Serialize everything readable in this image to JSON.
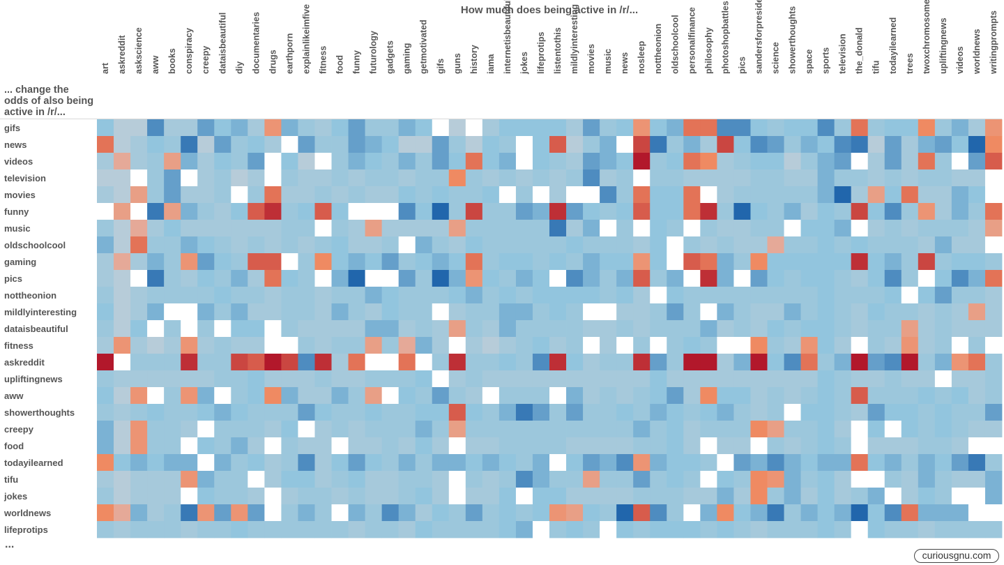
{
  "chart_data": {
    "type": "heatmap",
    "title": "How much does being active in /r/...",
    "ylabel": "... change the odds of also being active in /r/...",
    "x": [
      "art",
      "askreddit",
      "askscience",
      "aww",
      "books",
      "conspiracy",
      "creepy",
      "dataisbeautiful",
      "diy",
      "documentaries",
      "drugs",
      "earthporn",
      "explainlikeimfive",
      "fitness",
      "food",
      "funny",
      "futurology",
      "gadgets",
      "gaming",
      "getmotivated",
      "gifs",
      "guns",
      "history",
      "iama",
      "internetisbeautiful",
      "jokes",
      "lifeprotips",
      "listentothis",
      "mildlyinteresting",
      "movies",
      "music",
      "news",
      "nosleep",
      "nottheonion",
      "oldschoolcool",
      "personalfinance",
      "philosophy",
      "photoshopbattles",
      "pics",
      "sandersforpresident",
      "science",
      "showerthoughts",
      "space",
      "sports",
      "television",
      "the_donald",
      "tifu",
      "todayilearned",
      "trees",
      "twoxchromosomes",
      "upliftingnews",
      "videos",
      "worldnews",
      "writingprompts"
    ],
    "y": [
      "gifs",
      "news",
      "videos",
      "television",
      "movies",
      "funny",
      "music",
      "oldschoolcool",
      "gaming",
      "pics",
      "nottheonion",
      "mildlyinteresting",
      "dataisbeautiful",
      "fitness",
      "askreddit",
      "upliftingnews",
      "aww",
      "showerthoughts",
      "creepy",
      "food",
      "todayilearned",
      "tifu",
      "jokes",
      "worldnews",
      "lifeprotips"
    ],
    "more_rows": "...",
    "color_scale": {
      "negative": "#b2182b",
      "neutral": "#ffffff",
      "positive": "#2166ac"
    },
    "grid": false,
    "legend": "none",
    "values": [
      [
        0.5,
        0.2,
        0.2,
        0.8,
        0.3,
        0.3,
        0.7,
        0.5,
        0.6,
        0.3,
        -0.4,
        0.6,
        0.4,
        0.3,
        0.5,
        0.7,
        0.4,
        0.4,
        0.6,
        0.5,
        0,
        0.2,
        0,
        0.3,
        0.5,
        0.5,
        0.5,
        0.5,
        0.3,
        0.7,
        0.4,
        0.5,
        -0.4,
        0.5,
        0.6,
        -0.6,
        -0.6,
        0.8,
        0.8,
        0.5,
        0.4,
        0.5,
        0.5,
        0.8,
        0.4,
        -0.6,
        0.4,
        0.5,
        0.5,
        -0.5,
        0.4,
        0.6,
        0.3,
        -0.4
      ],
      [
        -0.6,
        0.2,
        0.3,
        0.5,
        0.4,
        0.9,
        0.2,
        0.7,
        0.4,
        0.5,
        0.3,
        0,
        0.7,
        0.4,
        0.4,
        0.7,
        0.6,
        0.5,
        0.2,
        0.2,
        0.7,
        0.4,
        0.2,
        0.5,
        0.4,
        0,
        0.5,
        -0.7,
        0.2,
        0.4,
        0.6,
        0,
        -0.8,
        0.9,
        0.4,
        0.6,
        0.3,
        -0.8,
        0.5,
        0.8,
        0.7,
        0.4,
        0.6,
        0.5,
        0.8,
        0.9,
        0.2,
        0.7,
        0.3,
        0.6,
        0.7,
        0.5,
        1,
        -0.5
      ],
      [
        0.3,
        -0.2,
        0.3,
        0.4,
        -0.3,
        0.6,
        0.3,
        0.5,
        0.4,
        0.7,
        0,
        0.5,
        0.2,
        0,
        0.4,
        0.6,
        0.5,
        0.4,
        0.6,
        0.4,
        0.7,
        0.5,
        -0.6,
        0.5,
        0.6,
        0,
        0.5,
        0.4,
        0.3,
        0.7,
        0.6,
        0.5,
        -1,
        0.4,
        0.5,
        -0.6,
        -0.5,
        0.3,
        0.4,
        0.5,
        0.5,
        0.2,
        0.4,
        0.6,
        0.7,
        0,
        0.3,
        0.7,
        0.3,
        -0.6,
        0.4,
        0,
        0.7,
        -0.7
      ],
      [
        0.2,
        0.2,
        0,
        0.4,
        0.7,
        0,
        0.3,
        0.4,
        0.2,
        0.3,
        0,
        0.4,
        0.3,
        0.3,
        0.4,
        0.3,
        0.4,
        0.4,
        0.3,
        0.4,
        0.4,
        -0.5,
        0.4,
        0.3,
        0.4,
        0.3,
        0.4,
        0.3,
        0.4,
        0.8,
        0.3,
        0.4,
        0,
        0.4,
        0.4,
        0.3,
        0.3,
        0.3,
        0.3,
        0.4,
        0.4,
        0.3,
        0.3,
        0.6,
        0.4,
        0.4,
        0.3,
        0.4,
        0.3,
        0.4,
        0.4,
        0.3,
        0.3,
        0
      ],
      [
        0.3,
        0.2,
        -0.3,
        0.4,
        0.7,
        0.3,
        0.3,
        0.4,
        0,
        0.4,
        -0.6,
        0.3,
        0.3,
        0.4,
        0.3,
        0.4,
        0.3,
        0.3,
        0.5,
        0.4,
        0.5,
        0.4,
        0.4,
        0.5,
        0,
        0.4,
        0,
        0.3,
        0,
        0,
        0.8,
        0.4,
        -0.6,
        0.5,
        0.5,
        -0.6,
        0,
        0.3,
        0.4,
        0.4,
        0.4,
        0.4,
        0.4,
        0.6,
        1,
        0.3,
        -0.3,
        0.5,
        -0.6,
        0.3,
        0.3,
        0.6,
        0.5,
        0
      ],
      [
        0,
        -0.3,
        0,
        0.9,
        -0.3,
        0.6,
        0.4,
        0.3,
        0.5,
        -0.7,
        -0.9,
        0.4,
        0.5,
        -0.7,
        0.5,
        0,
        0,
        0,
        0.8,
        0.5,
        1,
        0.4,
        -0.8,
        0.4,
        0.4,
        0.7,
        0.6,
        -0.9,
        0.7,
        0.5,
        0.4,
        0.5,
        -0.7,
        0.5,
        0.5,
        -0.6,
        -0.9,
        0.4,
        1,
        0.5,
        0.4,
        0.6,
        0.3,
        0.5,
        0.4,
        -0.8,
        0.5,
        0.8,
        0.4,
        -0.4,
        0.3,
        0.6,
        0.4,
        -0.6
      ],
      [
        0.4,
        0.2,
        -0.2,
        0.3,
        0.5,
        0.3,
        0.3,
        0.3,
        0.3,
        0.3,
        0.3,
        0.4,
        0.4,
        0,
        0.4,
        0.3,
        -0.3,
        0.3,
        0.3,
        0.3,
        0.3,
        -0.3,
        0.4,
        0.4,
        0.4,
        0.4,
        0.4,
        0.9,
        0.3,
        0.6,
        0,
        0.4,
        0,
        0.5,
        0.4,
        0,
        0.4,
        0.3,
        0.3,
        0.4,
        0.4,
        0,
        0.5,
        0.5,
        0.6,
        0,
        0.3,
        0.4,
        0.3,
        0.4,
        0.4,
        0.4,
        0.3,
        -0.3
      ],
      [
        0.6,
        0.2,
        -0.6,
        0.4,
        0.4,
        0.6,
        0.5,
        0.4,
        0.3,
        0.4,
        0.3,
        0.4,
        0.3,
        0.4,
        0.5,
        0.3,
        0.3,
        0.4,
        0,
        0.6,
        0.4,
        0.3,
        0.5,
        0.4,
        0.4,
        0.4,
        0.4,
        0.4,
        0.5,
        0.4,
        0.4,
        0.4,
        0.3,
        0.5,
        0,
        0.4,
        0.3,
        0.4,
        0.3,
        0.3,
        -0.2,
        0.4,
        0.4,
        0.5,
        0.4,
        0.5,
        0.4,
        0.4,
        0.4,
        0.3,
        0.6,
        0.3,
        0.3,
        0
      ],
      [
        0.3,
        -0.2,
        0.3,
        0.6,
        0.4,
        -0.4,
        0.7,
        0.5,
        0.4,
        -0.7,
        -0.7,
        0,
        0.4,
        -0.5,
        0.5,
        0.6,
        0.5,
        0.7,
        0.4,
        0.5,
        0.6,
        0.5,
        -0.6,
        0.4,
        0.5,
        0.5,
        0.4,
        0.5,
        0.4,
        0.6,
        0.5,
        0.5,
        -0.4,
        0.5,
        0,
        -0.7,
        -0.6,
        0.6,
        0.4,
        -0.5,
        0.5,
        0.5,
        0.5,
        0.5,
        0.5,
        -0.9,
        0.5,
        0.6,
        0.4,
        -0.8,
        0.4,
        0.5,
        0.5,
        0.4
      ],
      [
        0.3,
        0.2,
        0,
        0.9,
        0.4,
        0.3,
        0.5,
        0.4,
        0.6,
        0.3,
        -0.6,
        0.5,
        0.4,
        0,
        0.6,
        1,
        0,
        0,
        0.7,
        0.4,
        1,
        0.6,
        -0.4,
        0.5,
        0.4,
        0.6,
        0.5,
        0,
        0.8,
        0.6,
        0.4,
        0.6,
        -0.7,
        0.4,
        0.6,
        0,
        -0.9,
        0.6,
        0,
        0.7,
        0.5,
        0.4,
        0.5,
        0.5,
        0.4,
        0.3,
        0.5,
        0.8,
        0.4,
        0,
        0.5,
        0.8,
        0.6,
        -0.6
      ],
      [
        0.4,
        0.2,
        0.3,
        0.4,
        0.4,
        0.4,
        0.4,
        0.5,
        0.4,
        0.4,
        0.3,
        0.4,
        0.4,
        0.3,
        0.4,
        0.4,
        0.6,
        0.5,
        0.4,
        0.4,
        0.4,
        0.5,
        0.6,
        0.4,
        0.5,
        0.4,
        0.5,
        0.5,
        0.5,
        0.5,
        0.4,
        0.5,
        0.3,
        0,
        0.5,
        0.4,
        0.4,
        0.4,
        0.4,
        0.4,
        0.4,
        0.4,
        0.4,
        0.5,
        0.4,
        0.4,
        0.4,
        0.5,
        0,
        0.5,
        0.7,
        0.4,
        0.4,
        0.3
      ],
      [
        0.5,
        0.2,
        0.3,
        0.6,
        0,
        0,
        0.6,
        0.4,
        0.6,
        0.3,
        0.3,
        0.4,
        0.4,
        0.3,
        0.6,
        0.4,
        0.3,
        0.5,
        0.4,
        0.4,
        0,
        0.3,
        0.4,
        0.4,
        0.6,
        0.6,
        0.4,
        0.5,
        0.4,
        0,
        0,
        0.3,
        0.3,
        0.4,
        0.7,
        0.4,
        0,
        0.6,
        0.4,
        0.3,
        0.3,
        0.6,
        0.4,
        0.5,
        0.4,
        0.3,
        0.5,
        0.4,
        0.4,
        0.3,
        0.4,
        0.3,
        -0.3,
        0.3
      ],
      [
        0.4,
        0.2,
        0.5,
        0,
        0.4,
        0,
        0.4,
        0,
        0.5,
        0.5,
        0,
        0.4,
        0.3,
        0.3,
        0.3,
        0.3,
        0.6,
        0.6,
        0.3,
        0.4,
        0.3,
        -0.3,
        0.4,
        0.3,
        0.6,
        0.4,
        0.4,
        0.4,
        0.4,
        0.3,
        0.3,
        0.4,
        0.3,
        0.4,
        0.4,
        0.4,
        0.6,
        0.3,
        0.4,
        0.3,
        0.5,
        0.4,
        0.5,
        0.5,
        0.4,
        0.3,
        0.4,
        0.4,
        -0.3,
        0.3,
        0.4,
        0.3,
        0.3,
        0.3
      ],
      [
        0.3,
        -0.4,
        0.3,
        0.2,
        0.3,
        -0.4,
        0.3,
        0.4,
        0.3,
        0.3,
        0,
        0,
        0.4,
        0.3,
        0.4,
        0.4,
        -0.3,
        0.4,
        -0.2,
        0.6,
        0.3,
        0,
        0.3,
        0.2,
        0.3,
        0.4,
        0.5,
        0.3,
        0.4,
        0,
        0.3,
        0,
        0.4,
        0,
        0.4,
        0.5,
        0.4,
        0,
        0,
        -0.5,
        0.4,
        0.3,
        -0.4,
        0.5,
        0.3,
        0,
        0.4,
        0.3,
        -0.4,
        0.3,
        0.4,
        0,
        0.4,
        0
      ],
      [
        -1,
        0,
        0.4,
        0.4,
        0.4,
        -0.9,
        0.4,
        0.4,
        -0.8,
        -0.7,
        -1,
        -0.8,
        0.8,
        -0.9,
        0.3,
        -0.6,
        0,
        0,
        -0.6,
        0,
        0.4,
        -0.9,
        0.4,
        0.4,
        0.5,
        0.4,
        0.8,
        -0.9,
        0.5,
        0.3,
        0.4,
        0.4,
        -0.9,
        0.7,
        0.4,
        -1,
        -1,
        0.3,
        0.6,
        -1,
        0.5,
        0.8,
        -0.6,
        0.4,
        0.6,
        -1,
        0.7,
        0.8,
        -1,
        0.4,
        0.6,
        -0.4,
        -0.6,
        0.4
      ],
      [
        0.4,
        0.3,
        0.3,
        0.3,
        0.3,
        0.3,
        0.3,
        0.4,
        0.4,
        0.5,
        0.3,
        0.3,
        0.3,
        0.4,
        0.3,
        0.3,
        0.4,
        0.4,
        0.4,
        0.5,
        0,
        0.3,
        0.4,
        0.3,
        0.3,
        0.3,
        0.3,
        0.3,
        0.3,
        0.3,
        0.3,
        0.3,
        0.3,
        0.5,
        0.3,
        0.3,
        0.3,
        0.3,
        0.3,
        0.3,
        0.3,
        0.3,
        0.3,
        0.5,
        0.4,
        0.3,
        0.3,
        0.4,
        0.3,
        0.3,
        0,
        0.3,
        0.3,
        0.4
      ],
      [
        0.5,
        0.2,
        -0.4,
        0,
        0.4,
        -0.4,
        0.6,
        0,
        0.4,
        0.5,
        -0.5,
        0.6,
        0.3,
        0.3,
        0.6,
        0.4,
        -0.3,
        0,
        0.5,
        0.4,
        0.7,
        0.4,
        0.3,
        0,
        0.4,
        0.4,
        0.4,
        0,
        0.6,
        0.3,
        0.4,
        0.3,
        0.4,
        0.5,
        0.7,
        0.3,
        -0.5,
        0.5,
        0.5,
        0.3,
        0.4,
        0.3,
        0.4,
        0.5,
        0.4,
        -0.7,
        0.4,
        0.4,
        0.4,
        0.5,
        0.4,
        0.5,
        0.3,
        0.4
      ],
      [
        0.4,
        0.3,
        0.4,
        0.5,
        0.4,
        0.4,
        0.5,
        0.6,
        0.5,
        0.4,
        0.4,
        0.4,
        0.7,
        0.5,
        0.4,
        0.4,
        0.5,
        0.4,
        0.4,
        0.5,
        0.5,
        -0.7,
        0.5,
        0.4,
        0.6,
        0.9,
        0.7,
        0.4,
        0.7,
        0.4,
        0.4,
        0.5,
        0.4,
        0.6,
        0.5,
        0.4,
        0.5,
        0.6,
        0.4,
        0.3,
        0.4,
        0,
        0.5,
        0.5,
        0.4,
        0.3,
        0.7,
        0.5,
        0.5,
        0.4,
        0.5,
        0.4,
        0.4,
        0.7
      ],
      [
        0.6,
        0.2,
        -0.4,
        0.4,
        0.4,
        0.3,
        0,
        0.4,
        0.4,
        0.4,
        0.3,
        0.5,
        0,
        0.3,
        0.4,
        0.3,
        0.4,
        0.4,
        0.4,
        0.6,
        0.4,
        -0.3,
        0.4,
        0.4,
        0.4,
        0.4,
        0.4,
        0.4,
        0.4,
        0.4,
        0.4,
        0.4,
        0.6,
        0.4,
        0.5,
        0.3,
        0.4,
        0.4,
        0.4,
        -0.5,
        -0.3,
        0.4,
        0.4,
        0.5,
        0.3,
        0,
        0.5,
        0,
        0.5,
        0.4,
        0.5,
        0.4,
        0.3,
        0.3
      ],
      [
        0.6,
        0.2,
        -0.4,
        0.4,
        0.4,
        0,
        0.5,
        0.4,
        0.6,
        0.3,
        0,
        0.4,
        0.3,
        0.3,
        0,
        0.3,
        0.3,
        0.4,
        0.3,
        0.5,
        0.3,
        0,
        0.3,
        0.3,
        0.4,
        0.4,
        0.4,
        0.4,
        0.3,
        0.3,
        0.3,
        0.3,
        0.4,
        0.4,
        0.5,
        0.3,
        0,
        0.3,
        0.3,
        0,
        0.4,
        0.3,
        0.4,
        0.5,
        0.4,
        0,
        0.3,
        0.3,
        0.3,
        0.4,
        0.4,
        0.3,
        0,
        0
      ],
      [
        -0.5,
        0.5,
        0.6,
        0.5,
        0.6,
        0.6,
        0,
        0.6,
        0.4,
        0.5,
        0.3,
        0.4,
        0.8,
        0.3,
        0.5,
        0.7,
        0.5,
        0.4,
        0.6,
        0.4,
        0.6,
        0.6,
        0.5,
        0.6,
        0.5,
        0.4,
        0.6,
        0,
        0.5,
        0.7,
        0.6,
        0.8,
        -0.4,
        0.6,
        0.5,
        0.5,
        0.4,
        0,
        0.7,
        0.6,
        0.8,
        0.6,
        0.5,
        0.6,
        0.6,
        -0.6,
        0.5,
        0.6,
        0.4,
        0.6,
        0.5,
        0.7,
        0.9,
        0.4
      ],
      [
        0.3,
        0.2,
        0.3,
        0.3,
        0.3,
        -0.4,
        0.6,
        0.4,
        0.4,
        0,
        0.3,
        0.5,
        0.5,
        0.3,
        0.4,
        0.5,
        0.3,
        0.3,
        0.4,
        0.4,
        0.3,
        0,
        0.4,
        0.3,
        0.4,
        0.8,
        0.6,
        0.4,
        0.4,
        -0.3,
        0.4,
        0.4,
        0.7,
        0.4,
        0.5,
        0.4,
        0,
        0.5,
        0.4,
        -0.5,
        -0.4,
        0.6,
        0.4,
        0.5,
        0.3,
        0,
        0,
        0.4,
        0.3,
        0.6,
        0.4,
        0.3,
        0.3,
        0.6
      ],
      [
        0.4,
        0.2,
        0.3,
        0.3,
        0.3,
        0,
        0.5,
        0.4,
        0.4,
        0.3,
        0,
        0.3,
        0.4,
        0.4,
        0.3,
        0.4,
        0.3,
        0.3,
        0.4,
        0.5,
        0.3,
        0,
        0.3,
        0.3,
        0.5,
        0,
        0.5,
        0.5,
        0.3,
        0.3,
        0.3,
        0.3,
        0.4,
        0.4,
        0.4,
        0.3,
        0.3,
        0.6,
        0.3,
        -0.5,
        0.4,
        0.6,
        0.3,
        0.5,
        0.3,
        0.4,
        0.6,
        0,
        0.3,
        0.5,
        0.4,
        0,
        0,
        0.6
      ],
      [
        -0.5,
        -0.2,
        0.6,
        0.3,
        0.4,
        0.9,
        -0.4,
        0.7,
        -0.4,
        0.7,
        0,
        0.4,
        0.6,
        0.4,
        0,
        0.6,
        0.4,
        0.8,
        0.6,
        0.3,
        0.5,
        0.4,
        0.7,
        0.4,
        0.5,
        0.4,
        0.5,
        -0.4,
        -0.3,
        0.5,
        0.4,
        1,
        -0.7,
        0.8,
        0.4,
        0,
        0.6,
        -0.5,
        0.5,
        0.6,
        0.9,
        0.4,
        0.6,
        0.5,
        0.6,
        1,
        0.5,
        0.8,
        -0.6,
        0.6,
        0.6,
        0.6,
        0,
        0
      ],
      [
        0.4,
        0.3,
        0.4,
        0.4,
        0.4,
        0.3,
        0.4,
        0.4,
        0.5,
        0.4,
        0.4,
        0.4,
        0.4,
        0.4,
        0.4,
        0.3,
        0.4,
        0.4,
        0.3,
        0.5,
        0.4,
        0.4,
        0.4,
        0.4,
        0.5,
        0.6,
        0,
        0.4,
        0.5,
        0.4,
        0,
        0.5,
        0.4,
        0.5,
        0.5,
        0.5,
        0.4,
        0.5,
        0.4,
        0.3,
        0.4,
        0.4,
        0.4,
        0.5,
        0.4,
        0,
        0.5,
        0.4,
        0.4,
        0.3,
        0.4,
        0.4,
        0.4,
        0.4
      ]
    ]
  },
  "footer": {
    "more_label": "...",
    "brand": "curiousgnu.com"
  }
}
